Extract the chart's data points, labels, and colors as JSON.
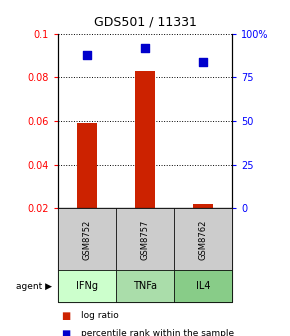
{
  "title": "GDS501 / 11331",
  "samples": [
    "GSM8752",
    "GSM8757",
    "GSM8762"
  ],
  "agents": [
    "IFNg",
    "TNFa",
    "IL4"
  ],
  "log_ratios": [
    0.059,
    0.083,
    0.022
  ],
  "percentile_ranks": [
    88,
    92,
    84
  ],
  "ylim_left": [
    0.02,
    0.1
  ],
  "ylim_right": [
    0,
    100
  ],
  "yticks_left": [
    0.02,
    0.04,
    0.06,
    0.08,
    0.1
  ],
  "ytick_labels_left": [
    "0.02",
    "0.04",
    "0.06",
    "0.08",
    "0.1"
  ],
  "yticks_right": [
    0,
    25,
    50,
    75,
    100
  ],
  "ytick_labels_right": [
    "0",
    "25",
    "50",
    "75",
    "100%"
  ],
  "bar_color": "#cc2200",
  "dot_color": "#0000cc",
  "agent_colors": [
    "#ccffcc",
    "#aaddaa",
    "#88cc88"
  ],
  "sample_bg": "#cccccc",
  "bar_width": 0.35,
  "dot_size": 28
}
